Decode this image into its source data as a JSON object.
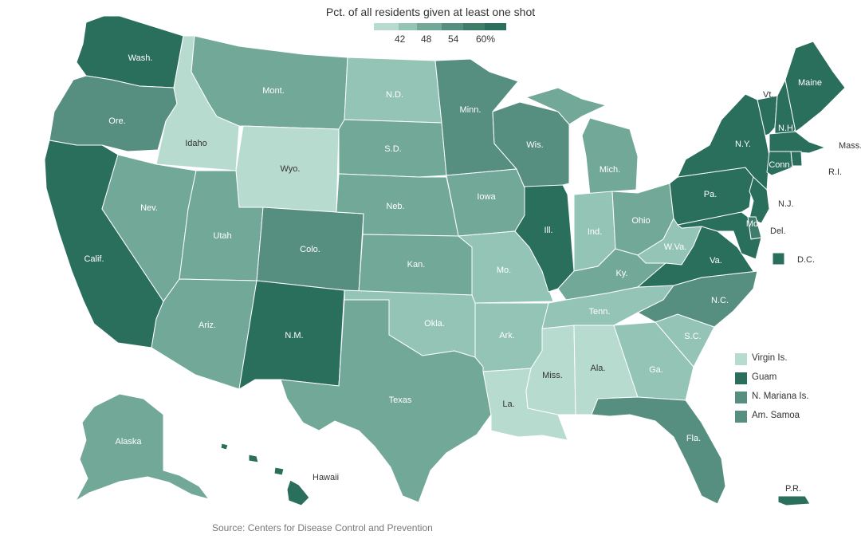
{
  "legend": {
    "title": "Pct. of all residents given at least one shot",
    "ticks": [
      "42",
      "48",
      "54",
      "60%"
    ],
    "colors": [
      "#b8dbd0",
      "#93c4b6",
      "#72a898",
      "#568f80",
      "#3f7d6b",
      "#2a6e5c"
    ]
  },
  "source": "Source: Centers for Disease Control and Prevention",
  "states": [
    {
      "id": "wa",
      "name": "Wash.",
      "bin": 5
    },
    {
      "id": "or",
      "name": "Ore.",
      "bin": 3
    },
    {
      "id": "ca",
      "name": "Calif.",
      "bin": 5
    },
    {
      "id": "id",
      "name": "Idaho",
      "bin": 0
    },
    {
      "id": "nv",
      "name": "Nev.",
      "bin": 2
    },
    {
      "id": "mt",
      "name": "Mont.",
      "bin": 2
    },
    {
      "id": "wy",
      "name": "Wyo.",
      "bin": 0
    },
    {
      "id": "ut",
      "name": "Utah",
      "bin": 2
    },
    {
      "id": "az",
      "name": "Ariz.",
      "bin": 2
    },
    {
      "id": "co",
      "name": "Colo.",
      "bin": 3
    },
    {
      "id": "nm",
      "name": "N.M.",
      "bin": 5
    },
    {
      "id": "nd",
      "name": "N.D.",
      "bin": 1
    },
    {
      "id": "sd",
      "name": "S.D.",
      "bin": 2
    },
    {
      "id": "ne",
      "name": "Neb.",
      "bin": 2
    },
    {
      "id": "ks",
      "name": "Kan.",
      "bin": 2
    },
    {
      "id": "ok",
      "name": "Okla.",
      "bin": 1
    },
    {
      "id": "tx",
      "name": "Texas",
      "bin": 2
    },
    {
      "id": "mn",
      "name": "Minn.",
      "bin": 3
    },
    {
      "id": "ia",
      "name": "Iowa",
      "bin": 2
    },
    {
      "id": "mo",
      "name": "Mo.",
      "bin": 1
    },
    {
      "id": "ar",
      "name": "Ark.",
      "bin": 1
    },
    {
      "id": "la",
      "name": "La.",
      "bin": 0
    },
    {
      "id": "wi",
      "name": "Wis.",
      "bin": 3
    },
    {
      "id": "il",
      "name": "Ill.",
      "bin": 5
    },
    {
      "id": "ms",
      "name": "Miss.",
      "bin": 0
    },
    {
      "id": "mi",
      "name": "Mich.",
      "bin": 2
    },
    {
      "id": "in",
      "name": "Ind.",
      "bin": 1
    },
    {
      "id": "ky",
      "name": "Ky.",
      "bin": 2
    },
    {
      "id": "tn",
      "name": "Tenn.",
      "bin": 1
    },
    {
      "id": "al",
      "name": "Ala.",
      "bin": 0
    },
    {
      "id": "oh",
      "name": "Ohio",
      "bin": 2
    },
    {
      "id": "wv",
      "name": "W.Va.",
      "bin": 1
    },
    {
      "id": "ga",
      "name": "Ga.",
      "bin": 1
    },
    {
      "id": "fl",
      "name": "Fla.",
      "bin": 3
    },
    {
      "id": "sc",
      "name": "S.C.",
      "bin": 1
    },
    {
      "id": "nc",
      "name": "N.C.",
      "bin": 3
    },
    {
      "id": "va",
      "name": "Va.",
      "bin": 5
    },
    {
      "id": "pa",
      "name": "Pa.",
      "bin": 5
    },
    {
      "id": "ny",
      "name": "N.Y.",
      "bin": 5
    },
    {
      "id": "vt",
      "name": "Vt.",
      "bin": 5
    },
    {
      "id": "nh",
      "name": "N.H.",
      "bin": 5
    },
    {
      "id": "me",
      "name": "Maine",
      "bin": 5
    },
    {
      "id": "ma",
      "name": "Mass.",
      "bin": 5
    },
    {
      "id": "ri",
      "name": "R.I.",
      "bin": 5
    },
    {
      "id": "ct",
      "name": "Conn.",
      "bin": 5
    },
    {
      "id": "nj",
      "name": "N.J.",
      "bin": 5
    },
    {
      "id": "de",
      "name": "Del.",
      "bin": 4
    },
    {
      "id": "md",
      "name": "Md.",
      "bin": 5
    },
    {
      "id": "dc",
      "name": "D.C.",
      "bin": 5
    },
    {
      "id": "ak",
      "name": "Alaska",
      "bin": 2
    },
    {
      "id": "hi",
      "name": "Hawaii",
      "bin": 5
    },
    {
      "id": "pr",
      "name": "P.R.",
      "bin": 5
    }
  ],
  "territories": [
    {
      "name": "Virgin Is.",
      "bin": 0
    },
    {
      "name": "Guam",
      "bin": 5
    },
    {
      "name": "N. Mariana Is.",
      "bin": 3
    },
    {
      "name": "Am. Samoa",
      "bin": 3
    }
  ]
}
